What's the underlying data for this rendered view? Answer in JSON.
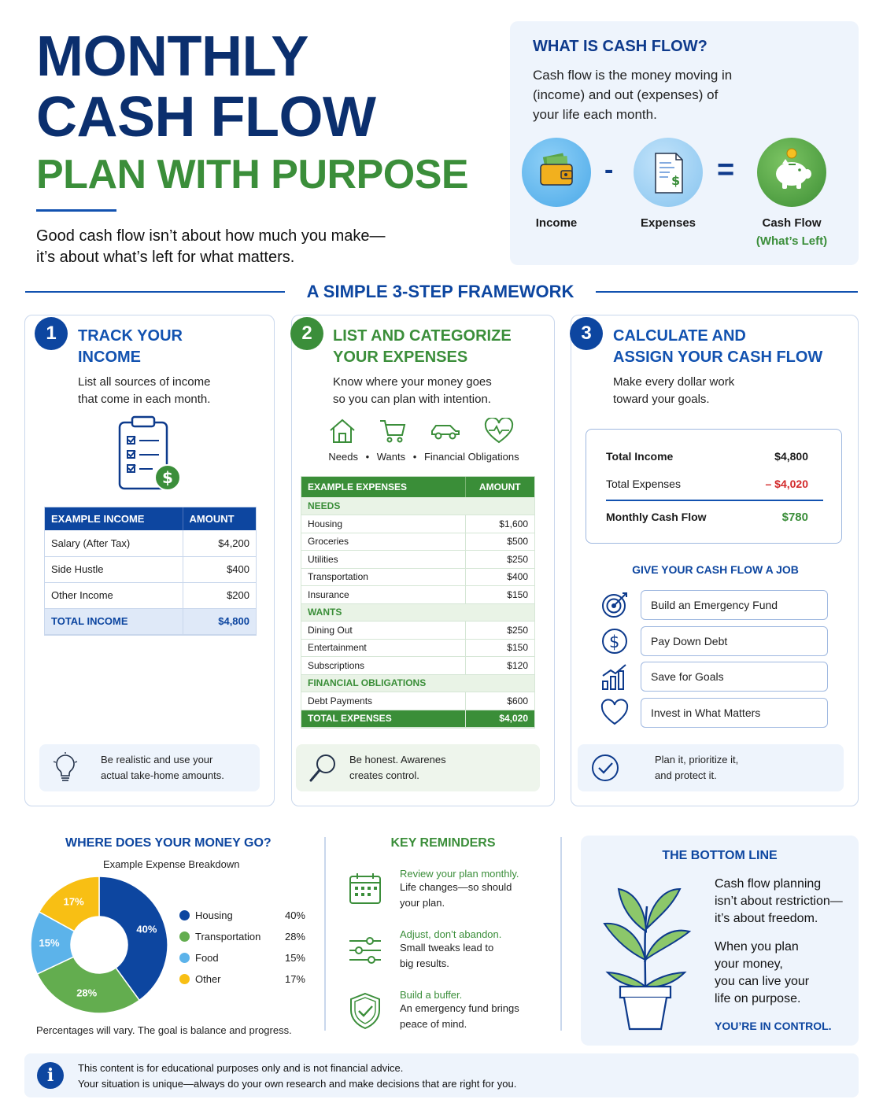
{
  "header": {
    "title_line1": "MONTHLY",
    "title_line2": "CASH FLOW",
    "subtitle": "PLAN WITH PURPOSE",
    "tagline_line1": "Good cash flow isn’t about how much you make—",
    "tagline_line2": "it’s about what’s left for what matters."
  },
  "what_is": {
    "title": "WHAT IS CASH FLOW?",
    "text_line1": "Cash flow is the money moving in",
    "text_line2": "(income) and out (expenses) of",
    "text_line3": "your life each month.",
    "minus": "-",
    "equals": "=",
    "income_label": "Income",
    "expenses_label": "Expenses",
    "cashflow_label": "Cash Flow",
    "cashflow_sub": "(What’s Left)"
  },
  "framework": {
    "title": "A SIMPLE 3-STEP FRAMEWORK"
  },
  "step1": {
    "num": "1",
    "title_line1": "TRACK YOUR",
    "title_line2": "INCOME",
    "desc_line1": "List all sources of income",
    "desc_line2": "that come in each month.",
    "col1": "EXAMPLE INCOME",
    "col2": "AMOUNT",
    "rows": [
      {
        "label": "Salary (After Tax)",
        "amount": "$4,200"
      },
      {
        "label": "Side Hustle",
        "amount": "$400"
      },
      {
        "label": "Other Income",
        "amount": "$200"
      }
    ],
    "total_label": "TOTAL INCOME",
    "total_amount": "$4,800",
    "tip_line1": "Be realistic and use your",
    "tip_line2": "actual take-home amounts."
  },
  "step2": {
    "num": "2",
    "title_line1": "LIST AND CATEGORIZE",
    "title_line2": "YOUR EXPENSES",
    "desc_line1": "Know where your money goes",
    "desc_line2": "so you can plan with intention.",
    "cat_needs": "Needs",
    "cat_wants": "Wants",
    "cat_fin": "Financial Obligations",
    "col1": "EXAMPLE EXPENSES",
    "col2": "AMOUNT",
    "needs_label": "NEEDS",
    "needs": [
      {
        "label": "Housing",
        "amount": "$1,600"
      },
      {
        "label": "Groceries",
        "amount": "$500"
      },
      {
        "label": "Utilities",
        "amount": "$250"
      },
      {
        "label": "Transportation",
        "amount": "$400"
      },
      {
        "label": "Insurance",
        "amount": "$150"
      }
    ],
    "wants_label": "WANTS",
    "wants": [
      {
        "label": "Dining Out",
        "amount": "$250"
      },
      {
        "label": "Entertainment",
        "amount": "$150"
      },
      {
        "label": "Subscriptions",
        "amount": "$120"
      }
    ],
    "fin_label": "FINANCIAL OBLIGATIONS",
    "fin": [
      {
        "label": "Debt Payments",
        "amount": "$600"
      }
    ],
    "total_label": "TOTAL EXPENSES",
    "total_amount": "$4,020",
    "tip_line1": "Be honest. Awarenes",
    "tip_line2": "creates control."
  },
  "step3": {
    "num": "3",
    "title_line1": "CALCULATE AND",
    "title_line2": "ASSIGN YOUR CASH FLOW",
    "desc_line1": "Make every dollar work",
    "desc_line2": "toward your goals.",
    "income_label": "Total Income",
    "income_amount": "$4,800",
    "expenses_label": "Total Expenses",
    "expenses_amount": "– $4,020",
    "cashflow_label": "Monthly Cash Flow",
    "cashflow_amount": "$780",
    "jobs_title": "GIVE YOUR CASH FLOW A JOB",
    "jobs": [
      "Build an Emergency Fund",
      "Pay Down Debt",
      "Save for Goals",
      "Invest in What Matters"
    ],
    "tip_line1": "Plan it, prioritize it,",
    "tip_line2": "and protect it."
  },
  "chart_section": {
    "title": "WHERE DOES YOUR MONEY GO?",
    "subtitle": "Example Expense Breakdown",
    "footnote": "Percentages will vary. The goal is balance and progress."
  },
  "chart_data": {
    "type": "pie",
    "title": "Example Expense Breakdown",
    "categories": [
      "Housing",
      "Transportation",
      "Food",
      "Other"
    ],
    "values": [
      40,
      28,
      15,
      17
    ],
    "labels": [
      "40%",
      "28%",
      "15%",
      "17%"
    ],
    "colors": [
      "#0d46a0",
      "#63ad4f",
      "#5cb3ea",
      "#f8bf14"
    ],
    "legend": "right"
  },
  "reminders": {
    "title": "KEY REMINDERS",
    "r1_title": "Review your plan monthly.",
    "r1_line1": "Life changes—so should",
    "r1_line2": "your plan.",
    "r2_title": "Adjust, don’t abandon.",
    "r2_line1": "Small tweaks lead to",
    "r2_line2": "big results.",
    "r3_title": "Build a buffer.",
    "r3_line1": "An emergency fund brings",
    "r3_line2": "peace of mind."
  },
  "bottom": {
    "title": "THE BOTTOM LINE",
    "p1_line1": "Cash flow planning",
    "p1_line2": "isn’t about restriction—",
    "p1_line3": "it’s about freedom.",
    "p2_line1": "When you plan",
    "p2_line2": "your money,",
    "p2_line3": "you can live your",
    "p2_line4": "life on purpose.",
    "cta": "YOU’RE IN CONTROL."
  },
  "disclaimer": {
    "icon": "i",
    "line1": "This content is for educational purposes only and is not financial advice.",
    "line2": "Your situation is unique—always do your own research and make decisions that are right for you."
  }
}
